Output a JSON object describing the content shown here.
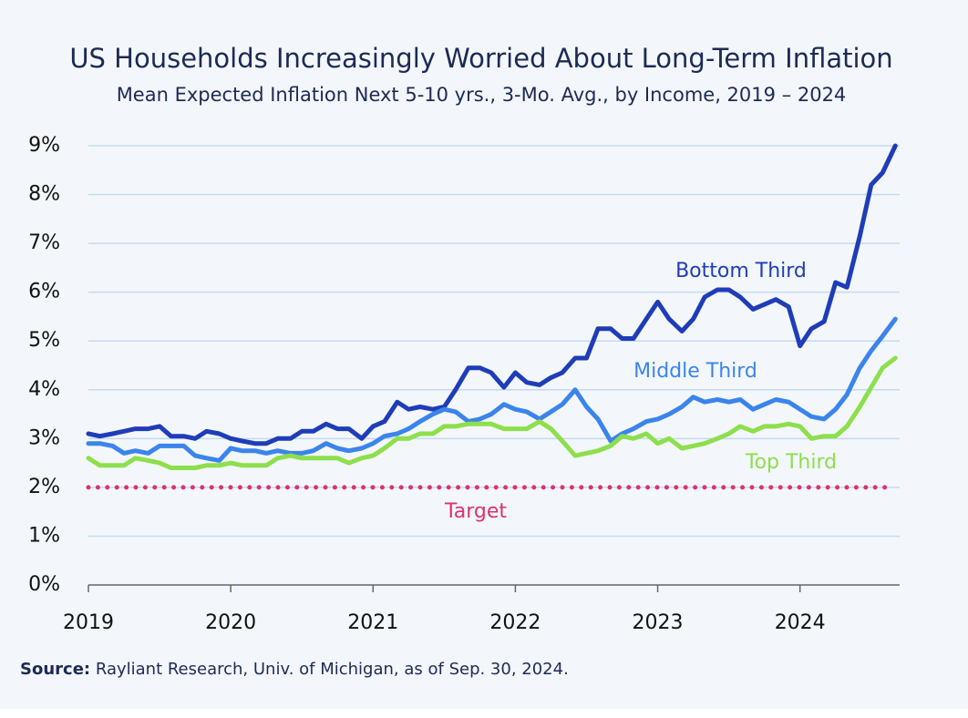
{
  "chart_data": {
    "type": "line",
    "title": "US Households Increasingly Worried About Long-Term Inflation",
    "subtitle": "Mean Expected Inflation Next 5-10 yrs., 3-Mo. Avg., by Income, 2019 – 2024",
    "source_label": "Source:",
    "source_text": "Rayliant Research, Univ. of Michigan, as of Sep. 30, 2024.",
    "x": [
      2019,
      2019.08,
      2019.17,
      2019.25,
      2019.33,
      2019.42,
      2019.5,
      2019.58,
      2019.67,
      2019.75,
      2019.83,
      2019.92,
      2020,
      2020.08,
      2020.17,
      2020.25,
      2020.33,
      2020.42,
      2020.5,
      2020.58,
      2020.67,
      2020.75,
      2020.83,
      2020.92,
      2021,
      2021.08,
      2021.17,
      2021.25,
      2021.33,
      2021.42,
      2021.5,
      2021.58,
      2021.67,
      2021.75,
      2021.83,
      2021.92,
      2022,
      2022.08,
      2022.17,
      2022.25,
      2022.33,
      2022.42,
      2022.5,
      2022.58,
      2022.67,
      2022.75,
      2022.83,
      2022.92,
      2023,
      2023.08,
      2023.17,
      2023.25,
      2023.33,
      2023.42,
      2023.5,
      2023.58,
      2023.67,
      2023.75,
      2023.83,
      2023.92,
      2024,
      2024.08,
      2024.17,
      2024.25,
      2024.33,
      2024.42,
      2024.5,
      2024.58,
      2024.67
    ],
    "series": [
      {
        "name": "Bottom Third",
        "color": "#1f3db8",
        "values": [
          3.1,
          3.05,
          3.1,
          3.15,
          3.2,
          3.2,
          3.25,
          3.05,
          3.05,
          3.0,
          3.15,
          3.1,
          3.0,
          2.95,
          2.9,
          2.9,
          3.0,
          3.0,
          3.15,
          3.15,
          3.3,
          3.2,
          3.2,
          3.0,
          3.25,
          3.35,
          3.75,
          3.6,
          3.65,
          3.6,
          3.65,
          4.0,
          4.45,
          4.45,
          4.35,
          4.05,
          4.35,
          4.15,
          4.1,
          4.25,
          4.35,
          4.65,
          4.65,
          5.25,
          5.25,
          5.05,
          5.05,
          5.45,
          5.8,
          5.45,
          5.2,
          5.45,
          5.9,
          6.05,
          6.05,
          5.9,
          5.65,
          5.75,
          5.85,
          5.7,
          4.9,
          5.25,
          5.4,
          6.2,
          6.1,
          7.15,
          8.2,
          8.45,
          9.0
        ]
      },
      {
        "name": "Middle Third",
        "color": "#3b84ec",
        "values": [
          2.9,
          2.9,
          2.85,
          2.7,
          2.75,
          2.7,
          2.85,
          2.85,
          2.85,
          2.65,
          2.6,
          2.55,
          2.8,
          2.75,
          2.75,
          2.7,
          2.75,
          2.7,
          2.7,
          2.75,
          2.9,
          2.8,
          2.75,
          2.8,
          2.9,
          3.05,
          3.1,
          3.2,
          3.35,
          3.5,
          3.6,
          3.55,
          3.35,
          3.4,
          3.5,
          3.7,
          3.6,
          3.55,
          3.4,
          3.55,
          3.7,
          4.0,
          3.65,
          3.4,
          2.95,
          3.1,
          3.2,
          3.35,
          3.4,
          3.5,
          3.65,
          3.85,
          3.75,
          3.8,
          3.75,
          3.8,
          3.6,
          3.7,
          3.8,
          3.75,
          3.6,
          3.45,
          3.4,
          3.6,
          3.9,
          4.45,
          4.8,
          5.1,
          5.45
        ]
      },
      {
        "name": "Top Third",
        "color": "#8ddf4c",
        "values": [
          2.6,
          2.45,
          2.45,
          2.45,
          2.6,
          2.55,
          2.5,
          2.4,
          2.4,
          2.4,
          2.45,
          2.45,
          2.5,
          2.45,
          2.45,
          2.45,
          2.6,
          2.65,
          2.6,
          2.6,
          2.6,
          2.6,
          2.5,
          2.6,
          2.65,
          2.8,
          3.0,
          3.0,
          3.1,
          3.1,
          3.25,
          3.25,
          3.3,
          3.3,
          3.3,
          3.2,
          3.2,
          3.2,
          3.35,
          3.2,
          2.95,
          2.65,
          2.7,
          2.75,
          2.85,
          3.05,
          3.0,
          3.1,
          2.9,
          3.0,
          2.8,
          2.85,
          2.9,
          3.0,
          3.1,
          3.25,
          3.15,
          3.25,
          3.25,
          3.3,
          3.25,
          3.0,
          3.05,
          3.05,
          3.25,
          3.65,
          4.05,
          4.45,
          4.65
        ]
      }
    ],
    "target": {
      "label": "Target",
      "value": 2,
      "color": "#e0306e"
    },
    "xlim": [
      2019,
      2024.7
    ],
    "xticks": [
      2019,
      2020,
      2021,
      2022,
      2023,
      2024
    ],
    "ylim": [
      0,
      9
    ],
    "yticks": [
      {
        "value": 0,
        "label": "0%"
      },
      {
        "value": 1,
        "label": "1%"
      },
      {
        "value": 2,
        "label": "2%"
      },
      {
        "value": 3,
        "label": "3%"
      },
      {
        "value": 4,
        "label": "4%"
      },
      {
        "value": 5,
        "label": "5%"
      },
      {
        "value": 6,
        "label": "6%"
      },
      {
        "value": 7,
        "label": "7%"
      },
      {
        "value": 8,
        "label": "8%"
      },
      {
        "value": 9,
        "label": "9%"
      }
    ],
    "grid": true
  }
}
